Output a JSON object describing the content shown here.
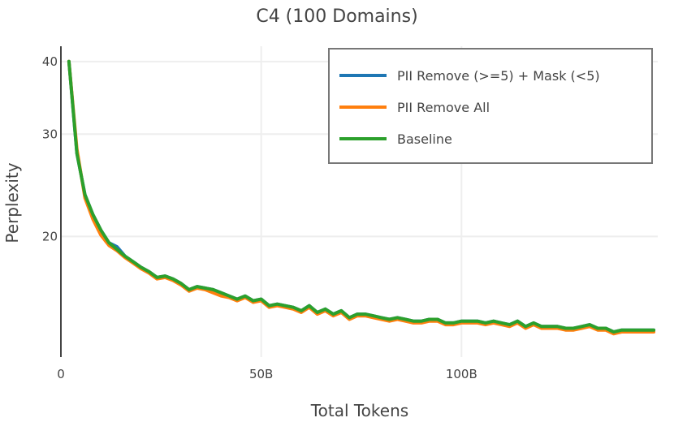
{
  "chart_data": {
    "type": "line",
    "title": "C4 (100 Domains)",
    "xlabel": "Total Tokens",
    "ylabel": "Perplexity",
    "y_scale": "log",
    "xlim": [
      0,
      149
    ],
    "ylim": [
      12.4,
      42.5
    ],
    "x_ticks": [
      {
        "value": 0,
        "label": "0"
      },
      {
        "value": 50,
        "label": "50B"
      },
      {
        "value": 100,
        "label": "100B"
      }
    ],
    "y_ticks": [
      {
        "value": 20,
        "label": "20"
      },
      {
        "value": 30,
        "label": "30"
      },
      {
        "value": 40,
        "label": "40"
      }
    ],
    "x_unit": "B tokens",
    "grid": true,
    "legend_position": "top-right",
    "series": [
      {
        "name": "PII Remove (>=5) + Mask (<5)",
        "color": "#1f77b4",
        "x": [
          2,
          4,
          6,
          8,
          10,
          12,
          14,
          16,
          18,
          20,
          22,
          24,
          26,
          28,
          30,
          32,
          34,
          36,
          38,
          40,
          42,
          44,
          46,
          48,
          50,
          52,
          54,
          56,
          58,
          60,
          62,
          64,
          66,
          68,
          70,
          72,
          74,
          76,
          78,
          80,
          82,
          84,
          86,
          88,
          90,
          92,
          94,
          96,
          98,
          100,
          102,
          104,
          106,
          108,
          110,
          112,
          114,
          116,
          118,
          120,
          122,
          124,
          126,
          128,
          130,
          132,
          134,
          136,
          138,
          140,
          142,
          144,
          146,
          148
        ],
        "y": [
          40.0,
          27.8,
          23.6,
          21.8,
          20.5,
          19.5,
          19.2,
          18.5,
          18.1,
          17.7,
          17.4,
          17.0,
          17.1,
          16.9,
          16.6,
          16.2,
          16.4,
          16.3,
          16.2,
          16.0,
          15.8,
          15.6,
          15.8,
          15.5,
          15.6,
          15.2,
          15.3,
          15.2,
          15.1,
          14.9,
          15.2,
          14.8,
          15.0,
          14.7,
          14.9,
          14.5,
          14.7,
          14.7,
          14.6,
          14.5,
          14.4,
          14.5,
          14.4,
          14.3,
          14.3,
          14.4,
          14.4,
          14.2,
          14.2,
          14.3,
          14.3,
          14.3,
          14.2,
          14.3,
          14.2,
          14.1,
          14.3,
          14.0,
          14.2,
          14.0,
          14.0,
          14.0,
          13.9,
          13.9,
          14.0,
          14.1,
          13.9,
          13.9,
          13.7,
          13.8,
          13.8,
          13.8,
          13.8,
          13.8
        ]
      },
      {
        "name": "PII Remove All",
        "color": "#ff7f0e",
        "x": [
          2,
          4,
          6,
          8,
          10,
          12,
          14,
          16,
          18,
          20,
          22,
          24,
          26,
          28,
          30,
          32,
          34,
          36,
          38,
          40,
          42,
          44,
          46,
          48,
          50,
          52,
          54,
          56,
          58,
          60,
          62,
          64,
          66,
          68,
          70,
          72,
          74,
          76,
          78,
          80,
          82,
          84,
          86,
          88,
          90,
          92,
          94,
          96,
          98,
          100,
          102,
          104,
          106,
          108,
          110,
          112,
          114,
          116,
          118,
          120,
          122,
          124,
          126,
          128,
          130,
          132,
          134,
          136,
          138,
          140,
          142,
          144,
          146,
          148
        ],
        "y": [
          40.0,
          28.3,
          23.3,
          21.4,
          20.1,
          19.3,
          18.9,
          18.4,
          18.0,
          17.6,
          17.3,
          16.9,
          17.0,
          16.8,
          16.5,
          16.1,
          16.3,
          16.2,
          16.0,
          15.8,
          15.7,
          15.5,
          15.7,
          15.4,
          15.5,
          15.1,
          15.2,
          15.1,
          15.0,
          14.8,
          15.1,
          14.7,
          14.9,
          14.6,
          14.8,
          14.4,
          14.6,
          14.6,
          14.5,
          14.4,
          14.3,
          14.4,
          14.3,
          14.2,
          14.2,
          14.3,
          14.3,
          14.1,
          14.1,
          14.2,
          14.2,
          14.2,
          14.1,
          14.2,
          14.1,
          14.0,
          14.2,
          13.9,
          14.1,
          13.9,
          13.9,
          13.9,
          13.8,
          13.8,
          13.9,
          14.0,
          13.8,
          13.8,
          13.6,
          13.7,
          13.7,
          13.7,
          13.7,
          13.7
        ]
      },
      {
        "name": "Baseline",
        "color": "#2ca02c",
        "x": [
          2,
          4,
          6,
          8,
          10,
          12,
          14,
          16,
          18,
          20,
          22,
          24,
          26,
          28,
          30,
          32,
          34,
          36,
          38,
          40,
          42,
          44,
          46,
          48,
          50,
          52,
          54,
          56,
          58,
          60,
          62,
          64,
          66,
          68,
          70,
          72,
          74,
          76,
          78,
          80,
          82,
          84,
          86,
          88,
          90,
          92,
          94,
          96,
          98,
          100,
          102,
          104,
          106,
          108,
          110,
          112,
          114,
          116,
          118,
          120,
          122,
          124,
          126,
          128,
          130,
          132,
          134,
          136,
          138,
          140,
          142,
          144,
          146,
          148
        ],
        "y": [
          40.0,
          27.8,
          23.6,
          21.8,
          20.5,
          19.5,
          19.0,
          18.5,
          18.1,
          17.7,
          17.4,
          17.0,
          17.1,
          16.9,
          16.6,
          16.2,
          16.4,
          16.3,
          16.2,
          16.0,
          15.8,
          15.6,
          15.8,
          15.5,
          15.6,
          15.2,
          15.3,
          15.2,
          15.1,
          14.9,
          15.2,
          14.8,
          15.0,
          14.7,
          14.9,
          14.5,
          14.7,
          14.7,
          14.6,
          14.5,
          14.4,
          14.5,
          14.4,
          14.3,
          14.3,
          14.4,
          14.4,
          14.2,
          14.2,
          14.3,
          14.3,
          14.3,
          14.2,
          14.3,
          14.2,
          14.1,
          14.3,
          14.0,
          14.2,
          14.0,
          14.0,
          14.0,
          13.9,
          13.9,
          14.0,
          14.1,
          13.9,
          13.9,
          13.7,
          13.8,
          13.8,
          13.8,
          13.8,
          13.8
        ]
      }
    ]
  }
}
